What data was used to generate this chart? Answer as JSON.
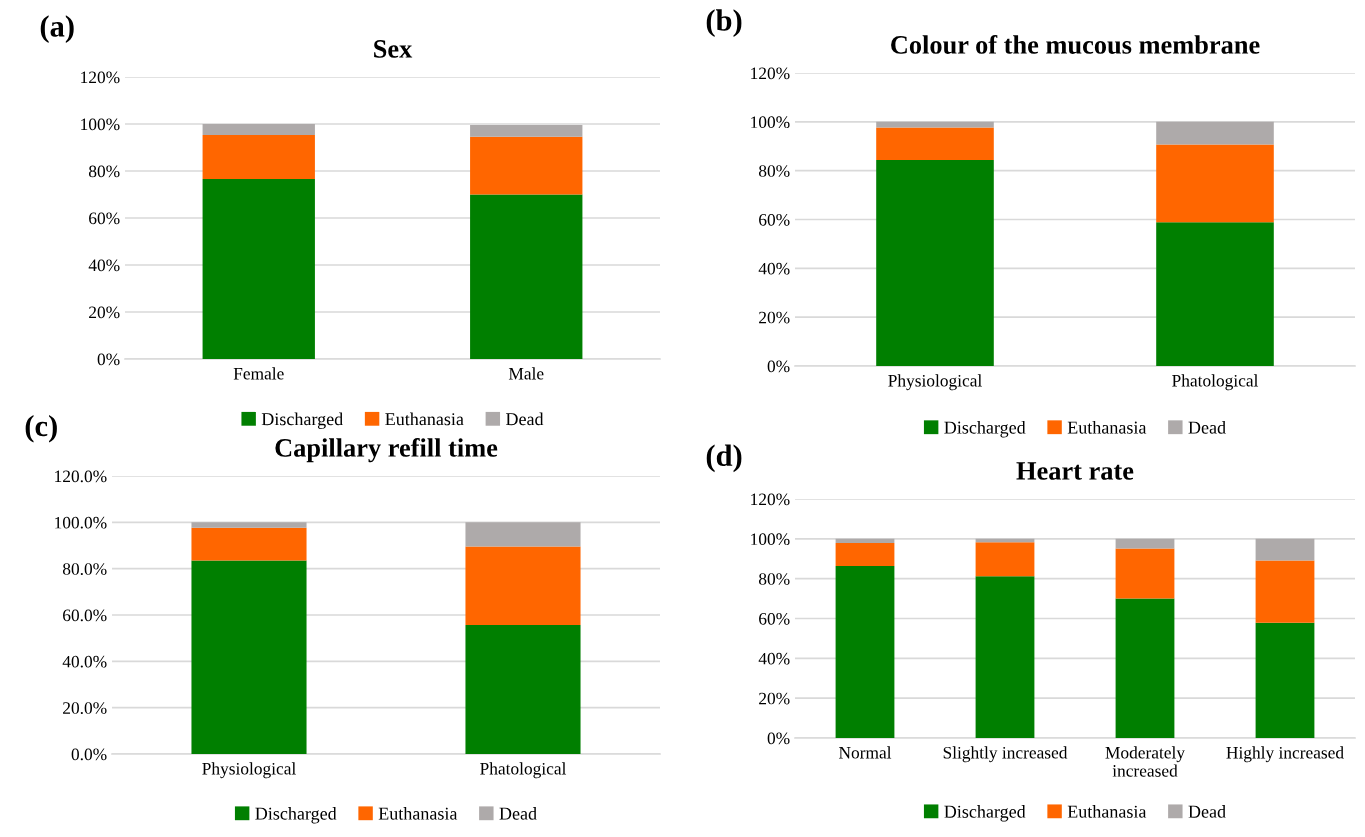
{
  "chart_data": [
    {
      "type": "bar",
      "title": "Sex",
      "annotations": [
        "(a)"
      ],
      "stacked": true,
      "categories": [
        "Female",
        "Male"
      ],
      "series": [
        {
          "name": "Discharged",
          "color": "#007f00",
          "values": [
            76.6,
            70.0
          ]
        },
        {
          "name": "Euthanasia",
          "color": "#ff6600",
          "values": [
            18.7,
            24.6
          ]
        },
        {
          "name": "Dead",
          "color": "#aeaaaa",
          "values": [
            4.7,
            5.0
          ]
        }
      ],
      "ylim": [
        0,
        120
      ],
      "yticks": [
        {
          "value": 0,
          "label": "0%"
        },
        {
          "value": 20,
          "label": "20%"
        },
        {
          "value": 40,
          "label": "40%"
        },
        {
          "value": 60,
          "label": "60%"
        },
        {
          "value": 80,
          "label": "80%"
        },
        {
          "value": 100,
          "label": "100%"
        },
        {
          "value": 120,
          "label": "120%"
        }
      ],
      "grid": "y",
      "legend": "bottom"
    },
    {
      "type": "bar",
      "title": "Colour of the mucous membrane",
      "annotations": [
        "(b)"
      ],
      "stacked": true,
      "categories": [
        "Physiological",
        "Phatological"
      ],
      "series": [
        {
          "name": "Discharged",
          "color": "#007f00",
          "values": [
            84.4,
            58.9
          ]
        },
        {
          "name": "Euthanasia",
          "color": "#ff6600",
          "values": [
            13.3,
            31.8
          ]
        },
        {
          "name": "Dead",
          "color": "#aeaaaa",
          "values": [
            2.3,
            9.3
          ]
        }
      ],
      "ylim": [
        0,
        120
      ],
      "yticks": [
        {
          "value": 0,
          "label": "0%"
        },
        {
          "value": 20,
          "label": "20%"
        },
        {
          "value": 40,
          "label": "40%"
        },
        {
          "value": 60,
          "label": "60%"
        },
        {
          "value": 80,
          "label": "80%"
        },
        {
          "value": 100,
          "label": "100%"
        },
        {
          "value": 120,
          "label": "120%"
        }
      ],
      "grid": "y",
      "legend": "bottom"
    },
    {
      "type": "bar",
      "title": "Capillary refill time",
      "annotations": [
        "(c)"
      ],
      "stacked": true,
      "categories": [
        "Physiological",
        "Phatological"
      ],
      "series": [
        {
          "name": "Discharged",
          "color": "#007f00",
          "values": [
            83.5,
            55.7
          ]
        },
        {
          "name": "Euthanasia",
          "color": "#ff6600",
          "values": [
            14.2,
            33.9
          ]
        },
        {
          "name": "Dead",
          "color": "#aeaaaa",
          "values": [
            2.3,
            10.4
          ]
        }
      ],
      "ylim": [
        0,
        120
      ],
      "yticks": [
        {
          "value": 0,
          "label": "0.0%"
        },
        {
          "value": 20,
          "label": "20.0%"
        },
        {
          "value": 40,
          "label": "40.0%"
        },
        {
          "value": 60,
          "label": "60.0%"
        },
        {
          "value": 80,
          "label": "80.0%"
        },
        {
          "value": 100,
          "label": "100.0%"
        },
        {
          "value": 120,
          "label": "120.0%"
        }
      ],
      "grid": "y",
      "legend": "bottom"
    },
    {
      "type": "bar",
      "title": "Heart rate",
      "annotations": [
        "(d)"
      ],
      "stacked": true,
      "categories": [
        "Normal",
        "Slightly increased",
        "Moderately increased",
        "Highly increased"
      ],
      "series": [
        {
          "name": "Discharged",
          "color": "#007f00",
          "values": [
            86.4,
            81.2,
            70.1,
            57.9
          ]
        },
        {
          "name": "Euthanasia",
          "color": "#ff6600",
          "values": [
            11.5,
            17.1,
            25.1,
            31.2
          ]
        },
        {
          "name": "Dead",
          "color": "#aeaaaa",
          "values": [
            2.1,
            1.7,
            4.8,
            10.9
          ]
        }
      ],
      "ylim": [
        0,
        120
      ],
      "yticks": [
        {
          "value": 0,
          "label": "0%"
        },
        {
          "value": 20,
          "label": "20%"
        },
        {
          "value": 40,
          "label": "40%"
        },
        {
          "value": 60,
          "label": "60%"
        },
        {
          "value": 80,
          "label": "80%"
        },
        {
          "value": 100,
          "label": "100%"
        },
        {
          "value": 120,
          "label": "120%"
        }
      ],
      "grid": "y",
      "legend": "bottom"
    }
  ]
}
